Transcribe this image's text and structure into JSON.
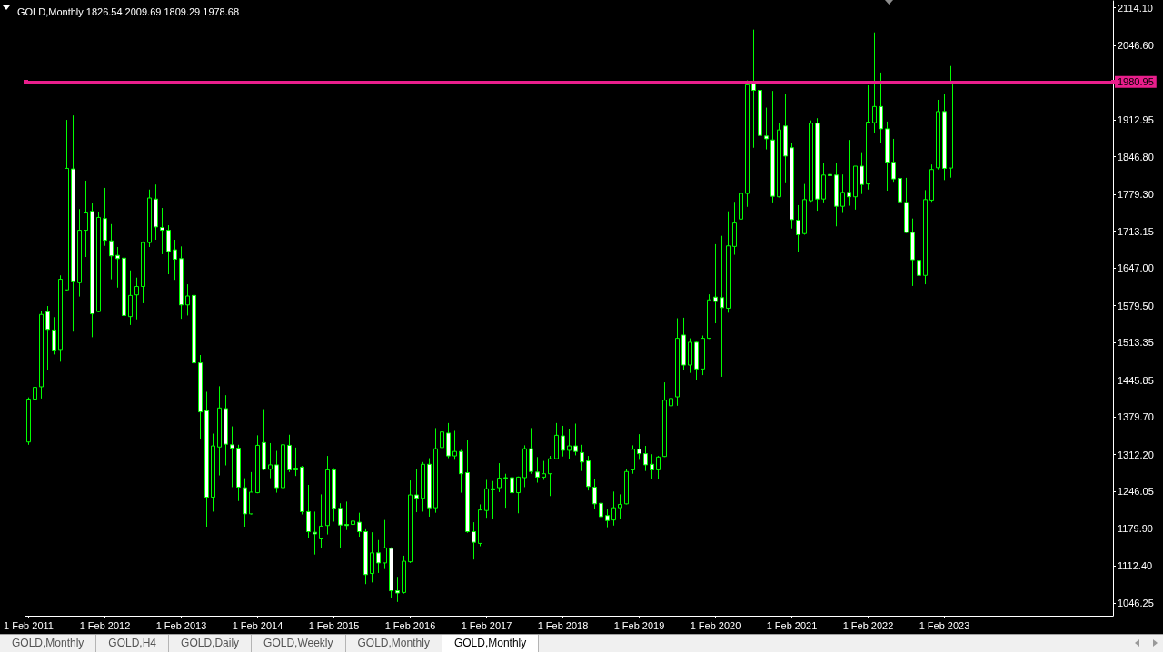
{
  "chart_data": {
    "type": "candlestick",
    "title": "GOLD,Monthly 1826.54 2009.69 1809.29 1978.68",
    "categories": [
      "1 Feb 2011",
      null,
      null,
      null,
      null,
      null,
      null,
      null,
      null,
      null,
      null,
      null,
      "1 Feb 2012",
      null,
      null,
      null,
      null,
      null,
      null,
      null,
      null,
      null,
      null,
      null,
      "1 Feb 2013",
      null,
      null,
      null,
      null,
      null,
      null,
      null,
      null,
      null,
      null,
      null,
      "1 Feb 2014",
      null,
      null,
      null,
      null,
      null,
      null,
      null,
      null,
      null,
      null,
      null,
      "1 Feb 2015",
      null,
      null,
      null,
      null,
      null,
      null,
      null,
      null,
      null,
      null,
      null,
      "1 Feb 2016",
      null,
      null,
      null,
      null,
      null,
      null,
      null,
      null,
      null,
      null,
      null,
      "1 Feb 2017",
      null,
      null,
      null,
      null,
      null,
      null,
      null,
      null,
      null,
      null,
      null,
      "1 Feb 2018",
      null,
      null,
      null,
      null,
      null,
      null,
      null,
      null,
      null,
      null,
      null,
      "1 Feb 2019",
      null,
      null,
      null,
      null,
      null,
      null,
      null,
      null,
      null,
      null,
      null,
      "1 Feb 2020",
      null,
      null,
      null,
      null,
      null,
      null,
      null,
      null,
      null,
      null,
      null,
      "1 Feb 2021",
      null,
      null,
      null,
      null,
      null,
      null,
      null,
      null,
      null,
      null,
      null,
      "1 Feb 2022",
      null,
      null,
      null,
      null,
      null,
      null,
      null,
      null,
      null,
      null,
      null,
      "1 Feb 2023",
      null,
      null,
      null,
      null,
      null,
      null,
      null,
      null,
      null,
      null,
      null,
      null,
      null,
      null,
      null,
      null,
      null,
      null,
      null,
      null,
      null,
      null,
      null,
      null,
      null,
      null
    ],
    "ohlc": [
      [
        1335,
        1415,
        1330,
        1412
      ],
      [
        1412,
        1449,
        1383,
        1433
      ],
      [
        1434,
        1570,
        1413,
        1564
      ],
      [
        1569,
        1579,
        1464,
        1537
      ],
      [
        1536,
        1559,
        1492,
        1500
      ],
      [
        1501,
        1634,
        1479,
        1627
      ],
      [
        1608,
        1913,
        1606,
        1826
      ],
      [
        1825,
        1921,
        1533,
        1624
      ],
      [
        1621,
        1753,
        1596,
        1715
      ],
      [
        1715,
        1804,
        1667,
        1746
      ],
      [
        1749,
        1764,
        1523,
        1565
      ],
      [
        1569,
        1748,
        1568,
        1738
      ],
      [
        1736,
        1791,
        1687,
        1697
      ],
      [
        1696,
        1726,
        1627,
        1669
      ],
      [
        1670,
        1685,
        1612,
        1664
      ],
      [
        1665,
        1672,
        1527,
        1562
      ],
      [
        1560,
        1643,
        1545,
        1598
      ],
      [
        1599,
        1630,
        1555,
        1614
      ],
      [
        1614,
        1695,
        1584,
        1693
      ],
      [
        1693,
        1788,
        1685,
        1773
      ],
      [
        1771,
        1797,
        1698,
        1721
      ],
      [
        1720,
        1755,
        1672,
        1715
      ],
      [
        1715,
        1724,
        1636,
        1677
      ],
      [
        1680,
        1698,
        1626,
        1663
      ],
      [
        1664,
        1686,
        1556,
        1581
      ],
      [
        1581,
        1618,
        1562,
        1597
      ],
      [
        1598,
        1606,
        1322,
        1477
      ],
      [
        1477,
        1491,
        1341,
        1389
      ],
      [
        1391,
        1425,
        1183,
        1236
      ],
      [
        1236,
        1350,
        1210,
        1328
      ],
      [
        1326,
        1435,
        1275,
        1396
      ],
      [
        1395,
        1419,
        1293,
        1331
      ],
      [
        1330,
        1363,
        1254,
        1324
      ],
      [
        1324,
        1330,
        1229,
        1254
      ],
      [
        1253,
        1270,
        1183,
        1206
      ],
      [
        1206,
        1281,
        1205,
        1245
      ],
      [
        1244,
        1347,
        1243,
        1329
      ],
      [
        1334,
        1394,
        1284,
        1286
      ],
      [
        1286,
        1333,
        1270,
        1294
      ],
      [
        1294,
        1319,
        1244,
        1253
      ],
      [
        1253,
        1332,
        1242,
        1330
      ],
      [
        1329,
        1348,
        1281,
        1285
      ],
      [
        1288,
        1325,
        1274,
        1285
      ],
      [
        1290,
        1292,
        1205,
        1210
      ],
      [
        1210,
        1258,
        1163,
        1174
      ],
      [
        1173,
        1210,
        1133,
        1170
      ],
      [
        1161,
        1241,
        1144,
        1184
      ],
      [
        1185,
        1310,
        1169,
        1285
      ],
      [
        1285,
        1288,
        1192,
        1216
      ],
      [
        1216,
        1225,
        1144,
        1186
      ],
      [
        1187,
        1228,
        1177,
        1185
      ],
      [
        1187,
        1235,
        1171,
        1193
      ],
      [
        1191,
        1208,
        1165,
        1174
      ],
      [
        1174,
        1180,
        1080,
        1097
      ],
      [
        1099,
        1173,
        1083,
        1136
      ],
      [
        1136,
        1159,
        1100,
        1118
      ],
      [
        1118,
        1195,
        1107,
        1145
      ],
      [
        1144,
        1146,
        1055,
        1068
      ],
      [
        1068,
        1093,
        1048,
        1064
      ],
      [
        1065,
        1131,
        1063,
        1121
      ],
      [
        1120,
        1266,
        1118,
        1240
      ],
      [
        1240,
        1287,
        1209,
        1234
      ],
      [
        1234,
        1299,
        1210,
        1295
      ],
      [
        1295,
        1306,
        1201,
        1217
      ],
      [
        1217,
        1360,
        1208,
        1323
      ],
      [
        1325,
        1378,
        1312,
        1353
      ],
      [
        1351,
        1369,
        1306,
        1310
      ],
      [
        1310,
        1355,
        1303,
        1318
      ],
      [
        1318,
        1321,
        1244,
        1278
      ],
      [
        1280,
        1339,
        1172,
        1174
      ],
      [
        1174,
        1191,
        1124,
        1155
      ],
      [
        1153,
        1223,
        1148,
        1213
      ],
      [
        1212,
        1267,
        1199,
        1251
      ],
      [
        1251,
        1265,
        1196,
        1249
      ],
      [
        1253,
        1297,
        1245,
        1270
      ],
      [
        1271,
        1278,
        1217,
        1270
      ],
      [
        1271,
        1298,
        1236,
        1244
      ],
      [
        1244,
        1273,
        1207,
        1272
      ],
      [
        1271,
        1329,
        1254,
        1323
      ],
      [
        1323,
        1360,
        1278,
        1282
      ],
      [
        1281,
        1308,
        1262,
        1272
      ],
      [
        1272,
        1301,
        1267,
        1278
      ],
      [
        1278,
        1310,
        1238,
        1305
      ],
      [
        1305,
        1369,
        1304,
        1347
      ],
      [
        1346,
        1364,
        1309,
        1320
      ],
      [
        1320,
        1359,
        1305,
        1328
      ],
      [
        1328,
        1368,
        1311,
        1318
      ],
      [
        1316,
        1330,
        1283,
        1299
      ],
      [
        1301,
        1310,
        1248,
        1255
      ],
      [
        1254,
        1268,
        1215,
        1224
      ],
      [
        1225,
        1226,
        1162,
        1201
      ],
      [
        1203,
        1215,
        1182,
        1194
      ],
      [
        1195,
        1246,
        1185,
        1217
      ],
      [
        1217,
        1241,
        1197,
        1223
      ],
      [
        1224,
        1287,
        1223,
        1282
      ],
      [
        1285,
        1329,
        1278,
        1322
      ],
      [
        1322,
        1349,
        1303,
        1314
      ],
      [
        1314,
        1328,
        1283,
        1294
      ],
      [
        1295,
        1313,
        1268,
        1285
      ],
      [
        1285,
        1310,
        1268,
        1308
      ],
      [
        1309,
        1442,
        1308,
        1410
      ],
      [
        1400,
        1455,
        1384,
        1413
      ],
      [
        1416,
        1557,
        1400,
        1521
      ],
      [
        1527,
        1558,
        1464,
        1473
      ],
      [
        1473,
        1521,
        1459,
        1514
      ],
      [
        1514,
        1515,
        1447,
        1466
      ],
      [
        1466,
        1526,
        1455,
        1521
      ],
      [
        1521,
        1600,
        1520,
        1590
      ],
      [
        1595,
        1690,
        1548,
        1587
      ],
      [
        1594,
        1705,
        1452,
        1576
      ],
      [
        1575,
        1749,
        1567,
        1687
      ],
      [
        1686,
        1766,
        1671,
        1728
      ],
      [
        1735,
        1786,
        1671,
        1781
      ],
      [
        1781,
        1984,
        1757,
        1976
      ],
      [
        1978,
        2075,
        1863,
        1966
      ],
      [
        1966,
        1993,
        1848,
        1885
      ],
      [
        1884,
        1935,
        1860,
        1879
      ],
      [
        1877,
        1965,
        1765,
        1776
      ],
      [
        1775,
        1907,
        1774,
        1895
      ],
      [
        1902,
        1960,
        1801,
        1848
      ],
      [
        1863,
        1872,
        1718,
        1734
      ],
      [
        1733,
        1760,
        1676,
        1707
      ],
      [
        1709,
        1798,
        1707,
        1770
      ],
      [
        1768,
        1912,
        1766,
        1907
      ],
      [
        1907,
        1916,
        1750,
        1771
      ],
      [
        1771,
        1835,
        1765,
        1814
      ],
      [
        1815,
        1832,
        1685,
        1813
      ],
      [
        1814,
        1835,
        1722,
        1758
      ],
      [
        1758,
        1815,
        1746,
        1783
      ],
      [
        1783,
        1877,
        1759,
        1775
      ],
      [
        1775,
        1830,
        1752,
        1830
      ],
      [
        1830,
        1855,
        1780,
        1797
      ],
      [
        1798,
        1975,
        1788,
        1909
      ],
      [
        1908,
        2070,
        1889,
        1937
      ],
      [
        1937,
        1998,
        1872,
        1897
      ],
      [
        1897,
        1910,
        1786,
        1837
      ],
      [
        1837,
        1879,
        1802,
        1807
      ],
      [
        1808,
        1815,
        1681,
        1766
      ],
      [
        1765,
        1809,
        1710,
        1711
      ],
      [
        1711,
        1736,
        1615,
        1662
      ],
      [
        1661,
        1731,
        1619,
        1634
      ],
      [
        1634,
        1787,
        1618,
        1770
      ],
      [
        1769,
        1833,
        1766,
        1824
      ],
      [
        1827,
        1949,
        1824,
        1928
      ],
      [
        1928,
        1960,
        1805,
        1826
      ],
      [
        1826.54,
        2009.69,
        1809.29,
        1978.68
      ],
      null,
      null,
      null,
      null,
      null,
      null,
      null,
      null,
      null,
      null,
      null,
      null,
      null,
      null,
      null,
      null,
      null,
      null,
      null,
      null,
      null,
      null,
      null,
      null,
      null
    ],
    "color": "#00ff00",
    "ylim": [
      1023.3,
      2126.6
    ],
    "yticks": [
      {
        "value": 1046.25,
        "label": "1046.25"
      },
      {
        "value": 1112.4,
        "label": "1112.40"
      },
      {
        "value": 1179.9,
        "label": "1179.90"
      },
      {
        "value": 1246.05,
        "label": "1246.05"
      },
      {
        "value": 1312.2,
        "label": "1312.20"
      },
      {
        "value": 1379.7,
        "label": "1379.70"
      },
      {
        "value": 1445.85,
        "label": "1445.85"
      },
      {
        "value": 1513.35,
        "label": "1513.35"
      },
      {
        "value": 1579.5,
        "label": "1579.50"
      },
      {
        "value": 1647,
        "label": "1647.00"
      },
      {
        "value": 1713.15,
        "label": "1713.15"
      },
      {
        "value": 1779.3,
        "label": "1779.30"
      },
      {
        "value": 1846.8,
        "label": "1846.80"
      },
      {
        "value": 1912.95,
        "label": "1912.95"
      },
      {
        "value": 2046.6,
        "label": "2046.60"
      },
      {
        "value": 2114.1,
        "label": "2114.10"
      }
    ],
    "ref_lines": [
      {
        "axis": "y",
        "value": 1980.95,
        "label": "1980.95",
        "color": "#e91e8c"
      }
    ],
    "annotations": [
      "GOLD,Monthly",
      "GOLD,H4",
      "GOLD,Daily",
      "GOLD,Weekly",
      "GOLD,Monthly",
      "GOLD,Monthly"
    ]
  }
}
